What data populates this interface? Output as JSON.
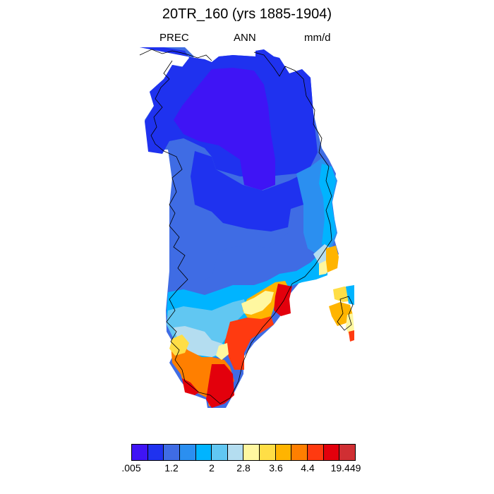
{
  "title": "20TR_160 (yrs 1885-1904)",
  "variable": "PREC",
  "season": "ANN",
  "units": "mm/d",
  "colorbar": {
    "colors": [
      "#3f14f5",
      "#1f32ef",
      "#3f6ce4",
      "#2b8ff0",
      "#00b4ff",
      "#61c7f2",
      "#b4ddf0",
      "#fff7a0",
      "#ffde46",
      "#ffb400",
      "#ff7f00",
      "#ff3a10",
      "#e3000c",
      "#d02f33"
    ],
    "tick_labels": [
      ".005",
      "1.2",
      "2",
      "2.8",
      "3.6",
      "4.4",
      "19.449"
    ]
  },
  "chart_data": {
    "type": "heatmap",
    "title": "20TR_160 (yrs 1885-1904)",
    "region": "Greenland",
    "variable": "PREC",
    "season": "ANN",
    "units": "mm/d",
    "value_range": [
      0.005,
      19.449
    ],
    "class_labels": [
      ".005",
      "",
      "1.2",
      "",
      "2",
      "",
      "2.8",
      "",
      "3.6",
      "",
      "4.4",
      "",
      "",
      "19.449"
    ],
    "pattern": {
      "interior_north": "lowest precipitation (class 1, below ~0.6 mm/d)",
      "west_and_central": "1.2 – 2 mm/d",
      "east_coast": "2 – 2.8 mm/d",
      "southeast_coast_and_south_tip": "3.6 – 19.449 mm/d (maximum)"
    }
  }
}
